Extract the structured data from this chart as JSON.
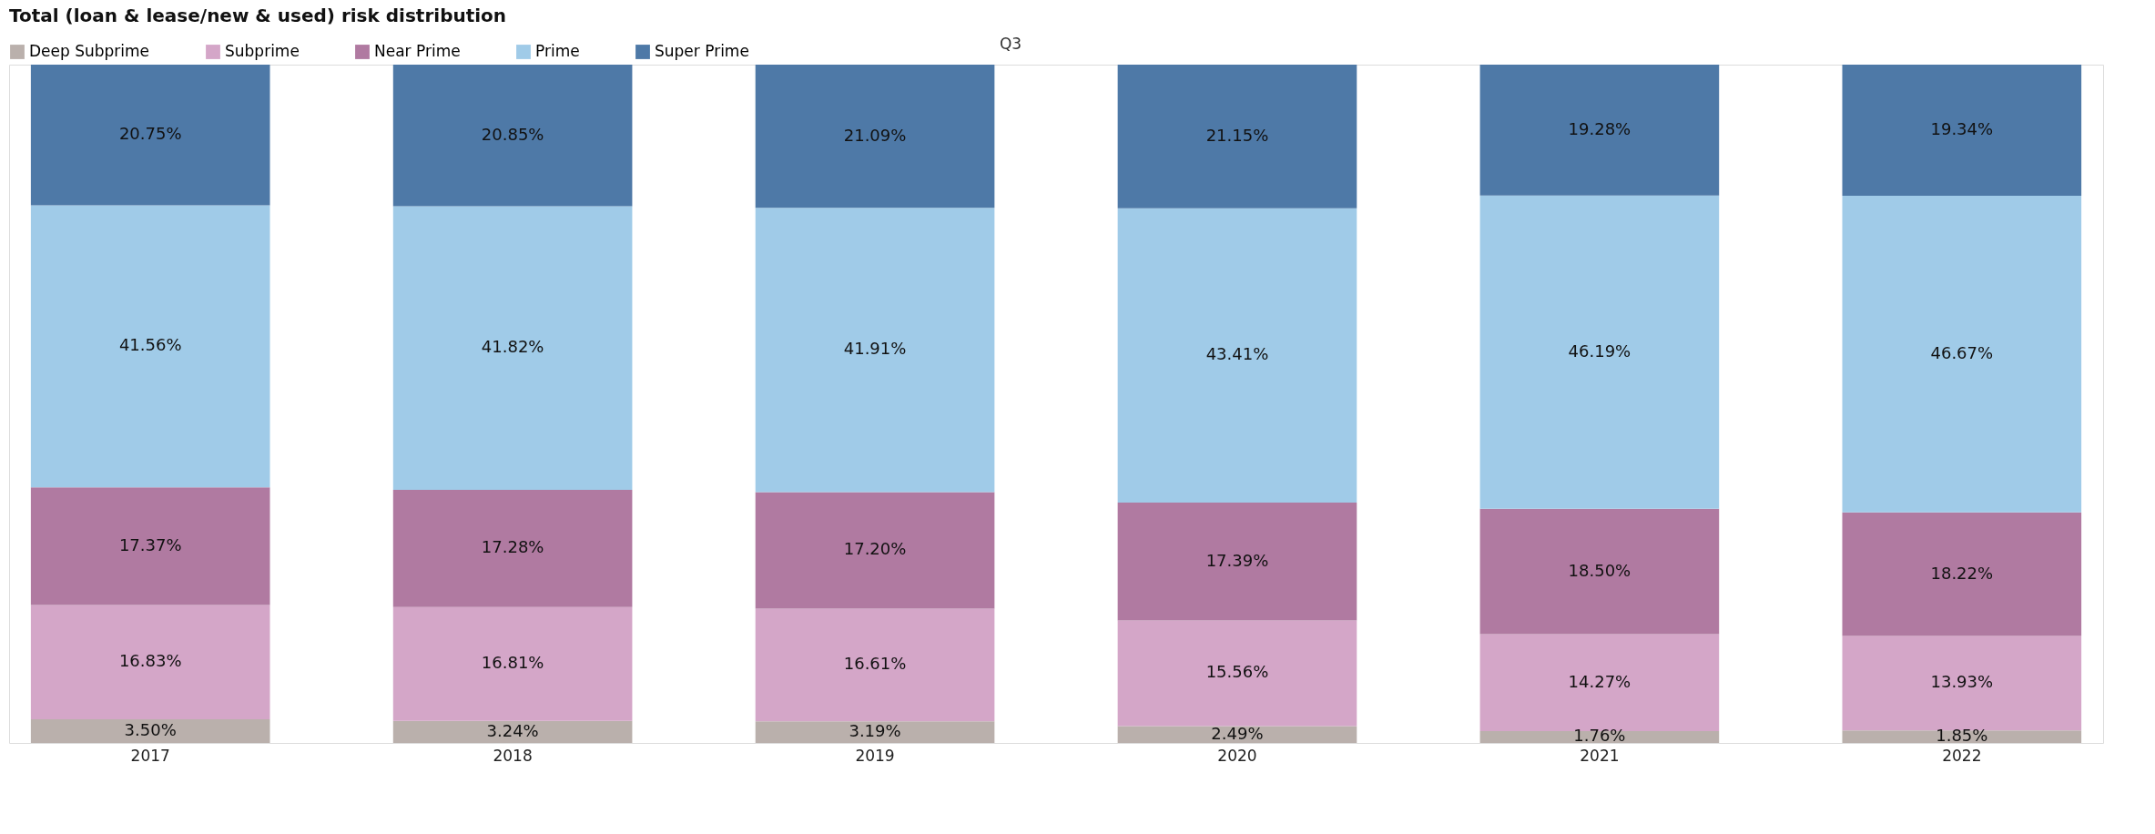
{
  "chart_data": {
    "type": "bar",
    "stacked": true,
    "title": "Total (loan & lease/new & used) risk distribution",
    "annotations": [
      "Q3"
    ],
    "categories": [
      "2017",
      "2018",
      "2019",
      "2020",
      "2021",
      "2022"
    ],
    "legend": "top",
    "series": [
      {
        "name": "Deep Subprime",
        "color": "#bab0ac",
        "values": [
          3.5,
          3.24,
          3.19,
          2.49,
          1.76,
          1.85
        ],
        "value_labels": [
          "3.50%",
          "3.24%",
          "3.19%",
          "2.49%",
          "1.76%",
          "1.85%"
        ]
      },
      {
        "name": "Subprime",
        "color": "#d4a6c8",
        "values": [
          16.83,
          16.81,
          16.61,
          15.56,
          14.27,
          13.93
        ],
        "value_labels": [
          "16.83%",
          "16.81%",
          "16.61%",
          "15.56%",
          "14.27%",
          "13.93%"
        ]
      },
      {
        "name": "Near Prime",
        "color": "#b07aa1",
        "values": [
          17.37,
          17.28,
          17.2,
          17.39,
          18.5,
          18.22
        ],
        "value_labels": [
          "17.37%",
          "17.28%",
          "17.20%",
          "17.39%",
          "18.50%",
          "18.22%"
        ]
      },
      {
        "name": "Prime",
        "color": "#a0cbe8",
        "values": [
          41.56,
          41.82,
          41.91,
          43.41,
          46.19,
          46.67
        ],
        "value_labels": [
          "41.56%",
          "41.82%",
          "41.91%",
          "43.41%",
          "46.19%",
          "46.67%"
        ]
      },
      {
        "name": "Super Prime",
        "color": "#4e79a7",
        "values": [
          20.75,
          20.85,
          21.09,
          21.15,
          19.28,
          19.34
        ],
        "value_labels": [
          "20.75%",
          "20.85%",
          "21.09%",
          "21.15%",
          "19.28%",
          "19.34%"
        ]
      }
    ]
  }
}
